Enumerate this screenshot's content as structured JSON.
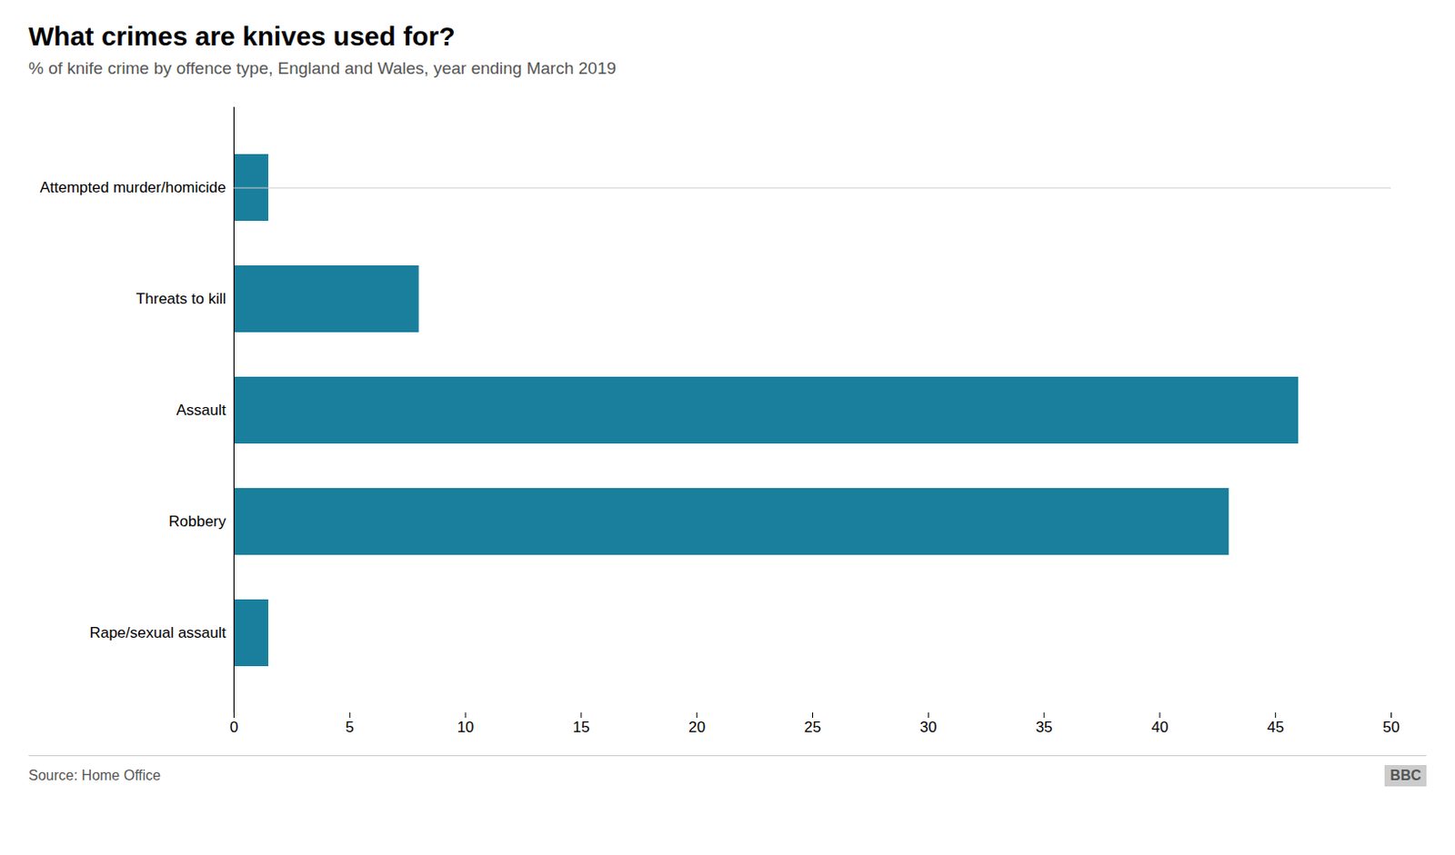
{
  "chart_data": {
    "type": "bar",
    "orientation": "horizontal",
    "title": "What crimes are knives used for?",
    "subtitle": "% of knife crime by offence type, England and Wales, year ending March 2019",
    "categories": [
      "Attempted murder/homicide",
      "Threats to kill",
      "Assault",
      "Robbery",
      "Rape/sexual assault"
    ],
    "values": [
      1.5,
      8.0,
      46.0,
      43.0,
      1.5
    ],
    "color": "#1a7f9c",
    "xlim": [
      0,
      50
    ],
    "xticks": [
      0,
      5,
      10,
      15,
      20,
      25,
      30,
      35,
      40,
      45,
      50
    ],
    "grid": false,
    "annotations": [
      "Source: Home Office",
      "BBC"
    ]
  }
}
